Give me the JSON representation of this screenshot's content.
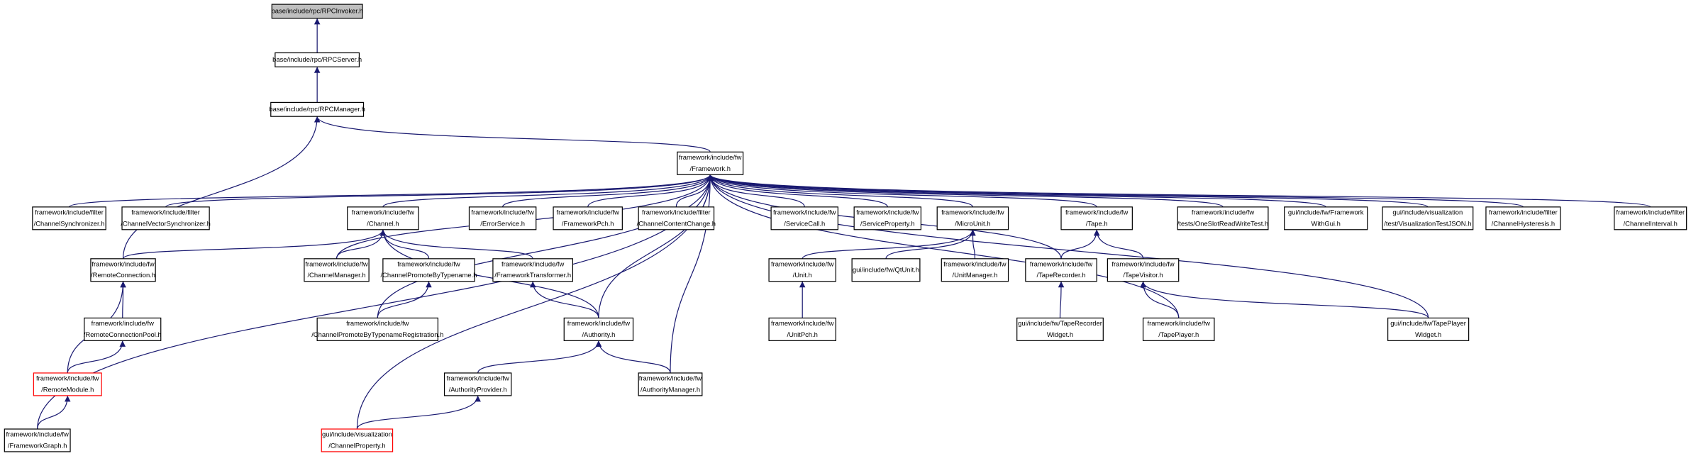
{
  "nodes": [
    {
      "label": [
        "base/include/rpc/RPCInvoker.h"
      ]
    },
    {
      "label": [
        "base/include/rpc/RPCServer.h"
      ]
    },
    {
      "label": [
        "base/include/rpc/RPCManager.h"
      ]
    },
    {
      "label": [
        "framework/include/fw",
        "/Framework.h"
      ]
    },
    {
      "label": [
        "framework/include/filter",
        "/ChannelSynchronizer.h"
      ]
    },
    {
      "label": [
        "framework/include/filter",
        "/ChannelVectorSynchronizer.h"
      ]
    },
    {
      "label": [
        "framework/include/fw",
        "/Channel.h"
      ]
    },
    {
      "label": [
        "framework/include/fw",
        "/ErrorService.h"
      ]
    },
    {
      "label": [
        "framework/include/fw",
        "/FrameworkPch.h"
      ]
    },
    {
      "label": [
        "framework/include/filter",
        "/ChannelContentChange.h"
      ]
    },
    {
      "label": [
        "framework/include/fw",
        "/ServiceCall.h"
      ]
    },
    {
      "label": [
        "framework/include/fw",
        "/ServiceProperty.h"
      ]
    },
    {
      "label": [
        "framework/include/fw",
        "/MicroUnit.h"
      ]
    },
    {
      "label": [
        "framework/include/fw",
        "/Tape.h"
      ]
    },
    {
      "label": [
        "framework/include/fw",
        "/tests/OneSlotReadWriteTest.h"
      ]
    },
    {
      "label": [
        "gui/include/fw/Framework",
        "WithGui.h"
      ]
    },
    {
      "label": [
        "gui/include/visualization",
        "/test/VisualizationTestJSON.h"
      ]
    },
    {
      "label": [
        "framework/include/filter",
        "/ChannelHysteresis.h"
      ]
    },
    {
      "label": [
        "framework/include/filter",
        "/ChannelInterval.h"
      ]
    },
    {
      "label": [
        "framework/include/fw",
        "/RemoteConnection.h"
      ]
    },
    {
      "label": [
        "framework/include/fw",
        "/ChannelManager.h"
      ]
    },
    {
      "label": [
        "framework/include/fw",
        "/ChannelPromoteByTypename.h"
      ]
    },
    {
      "label": [
        "framework/include/fw",
        "/FrameworkTransformer.h"
      ]
    },
    {
      "label": [
        "framework/include/fw",
        "/Unit.h"
      ]
    },
    {
      "label": [
        "gui/include/fw/QtUnit.h"
      ]
    },
    {
      "label": [
        "framework/include/fw",
        "/UnitManager.h"
      ]
    },
    {
      "label": [
        "framework/include/fw",
        "/TapeRecorder.h"
      ]
    },
    {
      "label": [
        "framework/include/fw",
        "/TapeVisitor.h"
      ]
    },
    {
      "label": [
        "framework/include/fw",
        "/RemoteConnectionPool.h"
      ]
    },
    {
      "label": [
        "framework/include/fw",
        "/ChannelPromoteByTypenameRegistration.h"
      ]
    },
    {
      "label": [
        "framework/include/fw",
        "/Authority.h"
      ]
    },
    {
      "label": [
        "framework/include/fw",
        "/UnitPch.h"
      ]
    },
    {
      "label": [
        "gui/include/fw/TapeRecorder",
        "Widget.h"
      ]
    },
    {
      "label": [
        "framework/include/fw",
        "/TapePlayer.h"
      ]
    },
    {
      "label": [
        "gui/include/fw/TapePlayer",
        "Widget.h"
      ]
    },
    {
      "label": [
        "framework/include/fw",
        "/RemoteModule.h"
      ]
    },
    {
      "label": [
        "framework/include/fw",
        "/AuthorityProvider.h"
      ]
    },
    {
      "label": [
        "framework/include/fw",
        "/AuthorityManager.h"
      ]
    },
    {
      "label": [
        "framework/include/fw",
        "/FrameworkGraph.h"
      ]
    },
    {
      "label": [
        "gui/include/visualization",
        "/ChannelProperty.h"
      ]
    }
  ]
}
